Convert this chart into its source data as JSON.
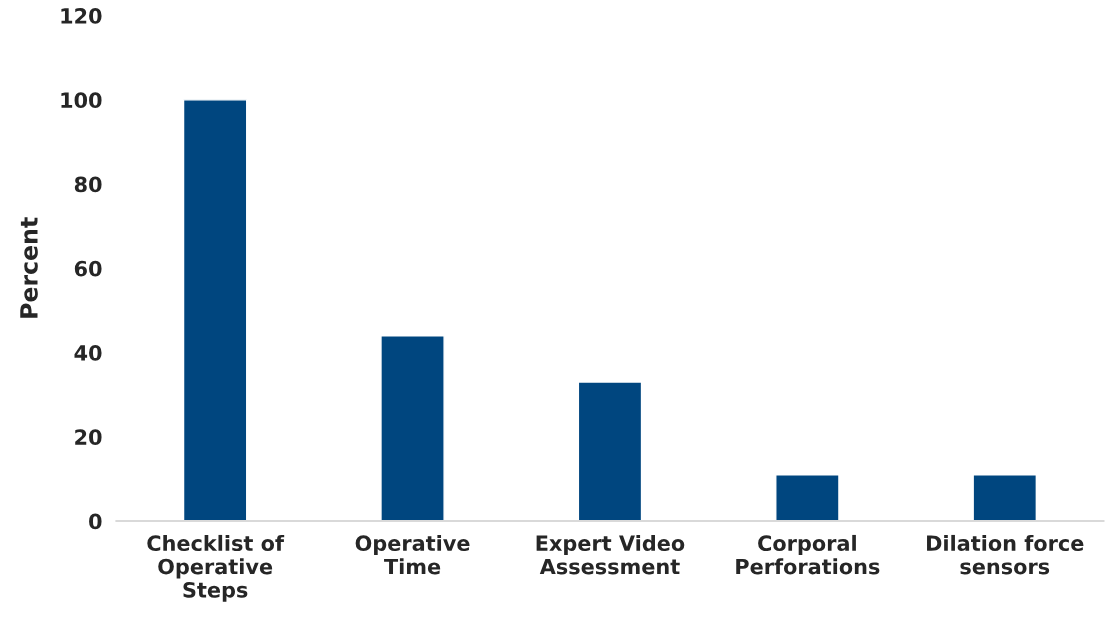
{
  "chart_data": {
    "type": "bar",
    "ylabel": "Percent",
    "categories": [
      "Checklist of\nOperative\nSteps",
      "Operative\nTime",
      "Expert Video\nAssessment",
      "Corporal\nPerforations",
      "Dilation force\nsensors"
    ],
    "values": [
      100,
      44,
      33,
      11,
      11
    ],
    "color": "#00467f",
    "ylim": [
      0,
      120
    ],
    "yticks": [
      0,
      20,
      40,
      60,
      80,
      100,
      120
    ],
    "grid": false
  }
}
